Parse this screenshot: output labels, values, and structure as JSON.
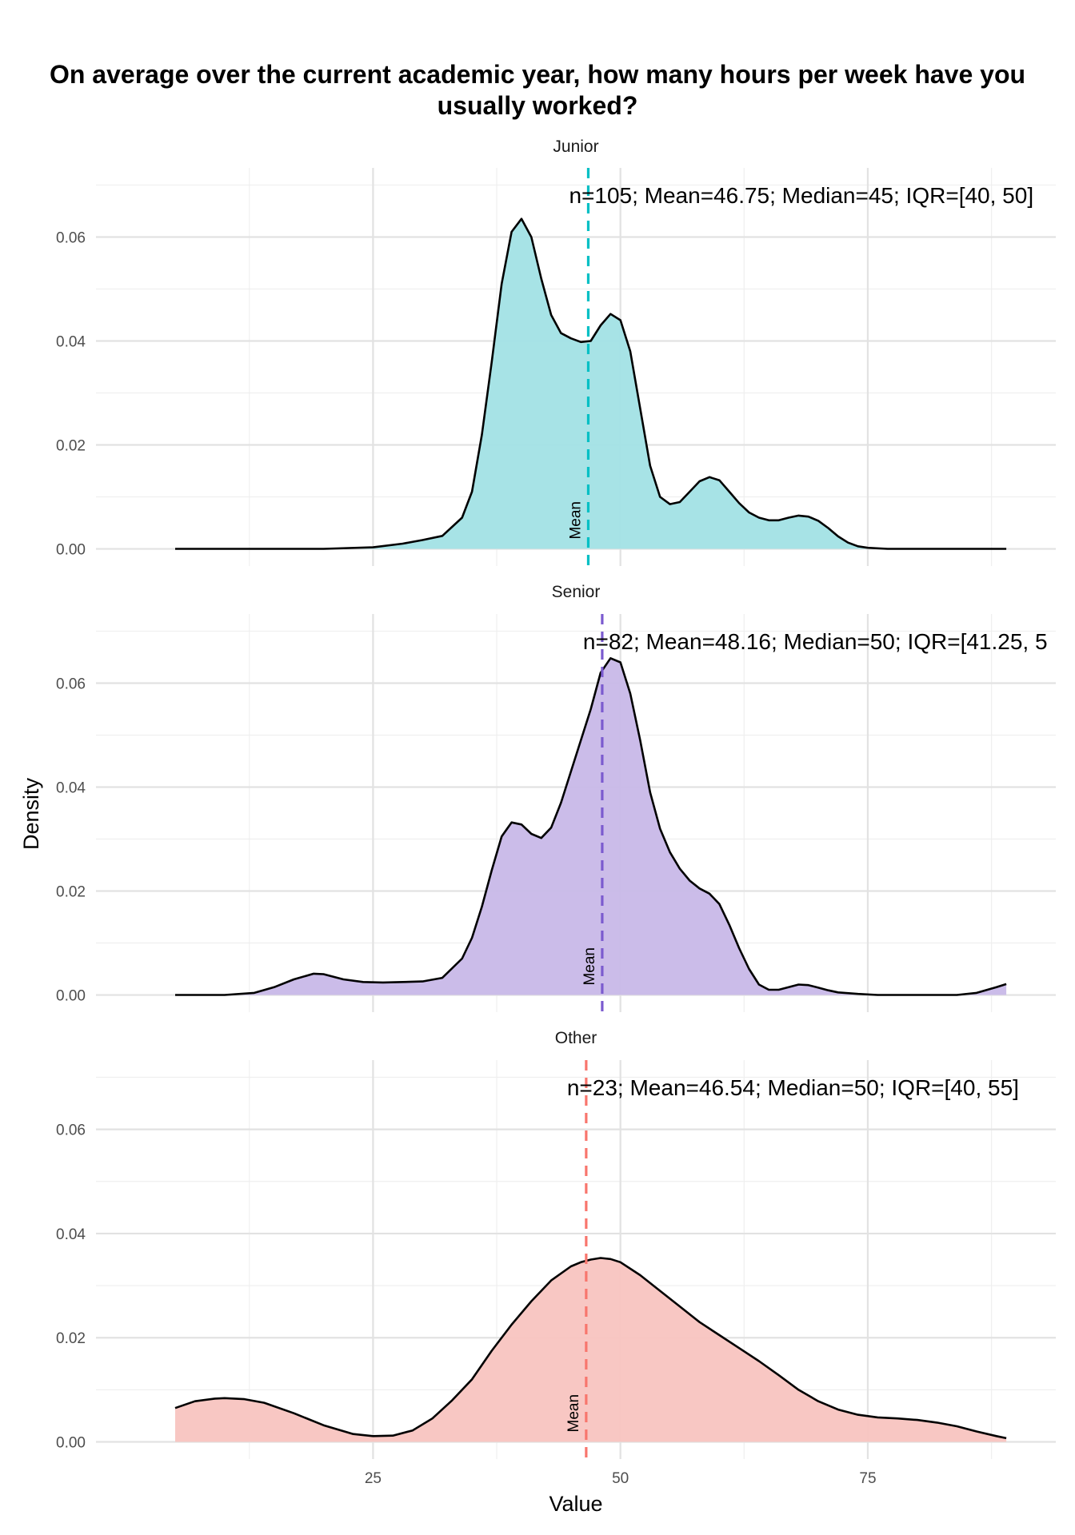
{
  "chart_data": {
    "type": "area",
    "title": "On average over the current academic year, how many hours per week have you\nusually worked?",
    "xlabel": "Value",
    "ylabel": "Density",
    "xlim": [
      -3,
      94
    ],
    "ylim": [
      -0.0033,
      0.0733
    ],
    "x_ticks": [
      25,
      50,
      75
    ],
    "y_ticks": [
      0.0,
      0.02,
      0.04,
      0.06
    ],
    "y_tick_labels": [
      "0.00",
      "0.02",
      "0.04",
      "0.06"
    ],
    "grid": true,
    "mean_label": "Mean",
    "panels": [
      {
        "name": "Junior",
        "color": "#00BFC4",
        "fill": "#A2E2E5",
        "mean": 46.75,
        "annotation": "n=105; Mean=46.75; Median=45; IQR=[40, 50]",
        "x": [
          5,
          10,
          15,
          20,
          25,
          28,
          30,
          32,
          34,
          35,
          36,
          37,
          38,
          39,
          40,
          41,
          42,
          43,
          44,
          45,
          46,
          47,
          48,
          49,
          50,
          51,
          52,
          53,
          54,
          55,
          56,
          57,
          58,
          59,
          60,
          61,
          62,
          63,
          64,
          65,
          66,
          67,
          68,
          69,
          70,
          71,
          72,
          73,
          74,
          75,
          77,
          80,
          85,
          89
        ],
        "y": [
          0.0,
          0.0,
          0.0,
          0.0,
          0.0003,
          0.001,
          0.0017,
          0.0025,
          0.006,
          0.011,
          0.022,
          0.036,
          0.051,
          0.061,
          0.0635,
          0.06,
          0.052,
          0.045,
          0.0415,
          0.0405,
          0.0398,
          0.04,
          0.043,
          0.0452,
          0.044,
          0.038,
          0.027,
          0.016,
          0.01,
          0.0086,
          0.009,
          0.011,
          0.013,
          0.0138,
          0.0132,
          0.011,
          0.0088,
          0.007,
          0.006,
          0.0055,
          0.0055,
          0.006,
          0.0064,
          0.0062,
          0.0054,
          0.004,
          0.0024,
          0.0012,
          0.0005,
          0.0002,
          0.0,
          0.0,
          0.0,
          0.0
        ]
      },
      {
        "name": "Senior",
        "color": "#7B5BCF",
        "fill": "#C8B8E8",
        "mean": 48.16,
        "annotation": "n=82; Mean=48.16; Median=50; IQR=[41.25, 5",
        "x": [
          5,
          10,
          13,
          15,
          17,
          19,
          20,
          22,
          24,
          26,
          28,
          30,
          32,
          34,
          35,
          36,
          37,
          38,
          39,
          40,
          41,
          42,
          43,
          44,
          45,
          46,
          47,
          48,
          49,
          50,
          51,
          52,
          53,
          54,
          55,
          56,
          57,
          58,
          59,
          60,
          61,
          62,
          63,
          64,
          65,
          66,
          67,
          68,
          69,
          70,
          71,
          72,
          74,
          76,
          80,
          84,
          86,
          88,
          89
        ],
        "y": [
          0.0,
          0.0,
          0.0004,
          0.0015,
          0.003,
          0.0041,
          0.004,
          0.003,
          0.0025,
          0.0024,
          0.0025,
          0.0026,
          0.0033,
          0.007,
          0.011,
          0.017,
          0.024,
          0.0305,
          0.0332,
          0.0328,
          0.031,
          0.0302,
          0.0322,
          0.037,
          0.043,
          0.049,
          0.055,
          0.062,
          0.0648,
          0.064,
          0.058,
          0.049,
          0.039,
          0.032,
          0.0275,
          0.0243,
          0.022,
          0.0205,
          0.0195,
          0.0175,
          0.0135,
          0.009,
          0.005,
          0.002,
          0.001,
          0.001,
          0.0015,
          0.002,
          0.0019,
          0.0014,
          0.0009,
          0.0005,
          0.0002,
          0.0,
          0.0,
          0.0,
          0.0004,
          0.0015,
          0.0021
        ]
      },
      {
        "name": "Other",
        "color": "#F8766D",
        "fill": "#F8C4C0",
        "mean": 46.54,
        "annotation": "n=23; Mean=46.54; Median=50; IQR=[40, 55]",
        "x": [
          5,
          7,
          9,
          10,
          12,
          14,
          17,
          20,
          23,
          25,
          27,
          29,
          31,
          33,
          35,
          37,
          39,
          41,
          43,
          45,
          46,
          47,
          48,
          49,
          50,
          52,
          54,
          56,
          58,
          60,
          62,
          64,
          66,
          68,
          70,
          72,
          74,
          76,
          78,
          80,
          82,
          84,
          86,
          88,
          89
        ],
        "y": [
          0.0065,
          0.0078,
          0.0083,
          0.0084,
          0.0082,
          0.0075,
          0.0055,
          0.0032,
          0.0015,
          0.0011,
          0.0012,
          0.0022,
          0.0045,
          0.008,
          0.012,
          0.0175,
          0.0225,
          0.027,
          0.031,
          0.0337,
          0.0345,
          0.035,
          0.0353,
          0.0351,
          0.0345,
          0.032,
          0.029,
          0.026,
          0.023,
          0.0205,
          0.018,
          0.0155,
          0.0128,
          0.01,
          0.0078,
          0.0062,
          0.0052,
          0.0047,
          0.0045,
          0.0042,
          0.0037,
          0.003,
          0.002,
          0.0011,
          0.0007
        ]
      }
    ]
  }
}
